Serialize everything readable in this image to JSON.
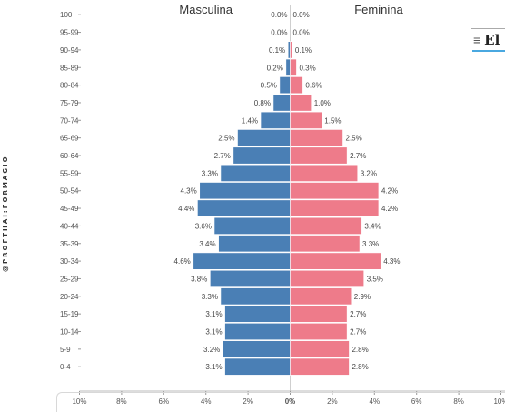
{
  "watermark": "@PROFTHAI:FORMAGIO",
  "menu": {
    "icon": "menu-icon",
    "text": "El"
  },
  "chart_data": {
    "type": "bar",
    "orientation": "horizontal-population-pyramid",
    "categories": [
      "100+",
      "95-99",
      "90-94",
      "85-89",
      "80-84",
      "75-79",
      "70-74",
      "65-69",
      "60-64",
      "55-59",
      "50-54",
      "45-49",
      "40-44",
      "35-39",
      "30-34",
      "25-29",
      "20-24",
      "15-19",
      "10-14",
      "5-9",
      "0-4"
    ],
    "series": [
      {
        "name": "Masculina",
        "color": "#4a7fb5",
        "values": [
          0.0,
          0.0,
          0.1,
          0.2,
          0.5,
          0.8,
          1.4,
          2.5,
          2.7,
          3.3,
          4.3,
          4.4,
          3.6,
          3.4,
          4.6,
          3.8,
          3.3,
          3.1,
          3.1,
          3.2,
          3.1
        ],
        "labels": [
          "0.0%",
          "0.0%",
          "0.1%",
          "0.2%",
          "0.5%",
          "0.8%",
          "1.4%",
          "2.5%",
          "2.7%",
          "3.3%",
          "4.3%",
          "4.4%",
          "3.6%",
          "3.4%",
          "4.6%",
          "3.8%",
          "3.3%",
          "3.1%",
          "3.1%",
          "3.2%",
          "3.1%"
        ]
      },
      {
        "name": "Feminina",
        "color": "#ee7b8a",
        "values": [
          0.0,
          0.0,
          0.1,
          0.3,
          0.6,
          1.0,
          1.5,
          2.5,
          2.7,
          3.2,
          4.2,
          4.2,
          3.4,
          3.3,
          4.3,
          3.5,
          2.9,
          2.7,
          2.7,
          2.8,
          2.8
        ],
        "labels": [
          "0.0%",
          "0.0%",
          "0.1%",
          "0.3%",
          "0.6%",
          "1.0%",
          "1.5%",
          "2.5%",
          "2.7%",
          "3.2%",
          "4.2%",
          "4.2%",
          "3.4%",
          "3.3%",
          "4.3%",
          "3.5%",
          "2.9%",
          "2.7%",
          "2.7%",
          "2.8%",
          "2.8%"
        ]
      }
    ],
    "xticks": [
      "10%",
      "8%",
      "6%",
      "4%",
      "2%",
      "0%",
      "2%",
      "4%",
      "6%",
      "8%",
      "10%"
    ],
    "xlim": [
      -10,
      10
    ],
    "grid": false,
    "legend": "column titles above each side"
  }
}
